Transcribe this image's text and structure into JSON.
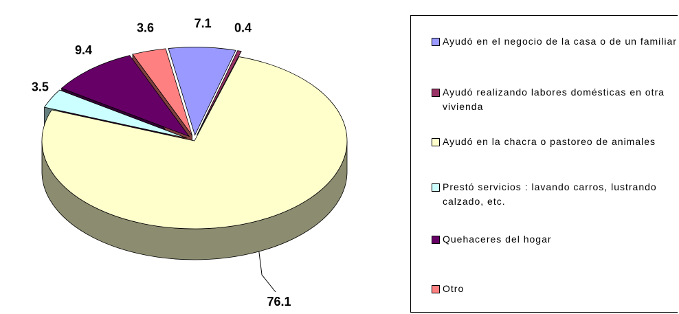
{
  "chart_data": {
    "type": "pie",
    "categories": [
      "Ayudó en el negocio de la casa o de un familiar",
      "Ayudó realizando labores domésticas en otra vivienda",
      "Ayudó en la chacra o pastoreo de animales",
      "Prestó servicios : lavando carros, lustrando calzado, etc.",
      "Quehaceres del hogar",
      "Otro"
    ],
    "values": [
      7.1,
      0.4,
      76.1,
      3.5,
      9.4,
      3.6
    ],
    "colors": [
      "#9999ff",
      "#993366",
      "#ffffcc",
      "#ccffff",
      "#660066",
      "#ff8080"
    ],
    "legend": "right"
  }
}
